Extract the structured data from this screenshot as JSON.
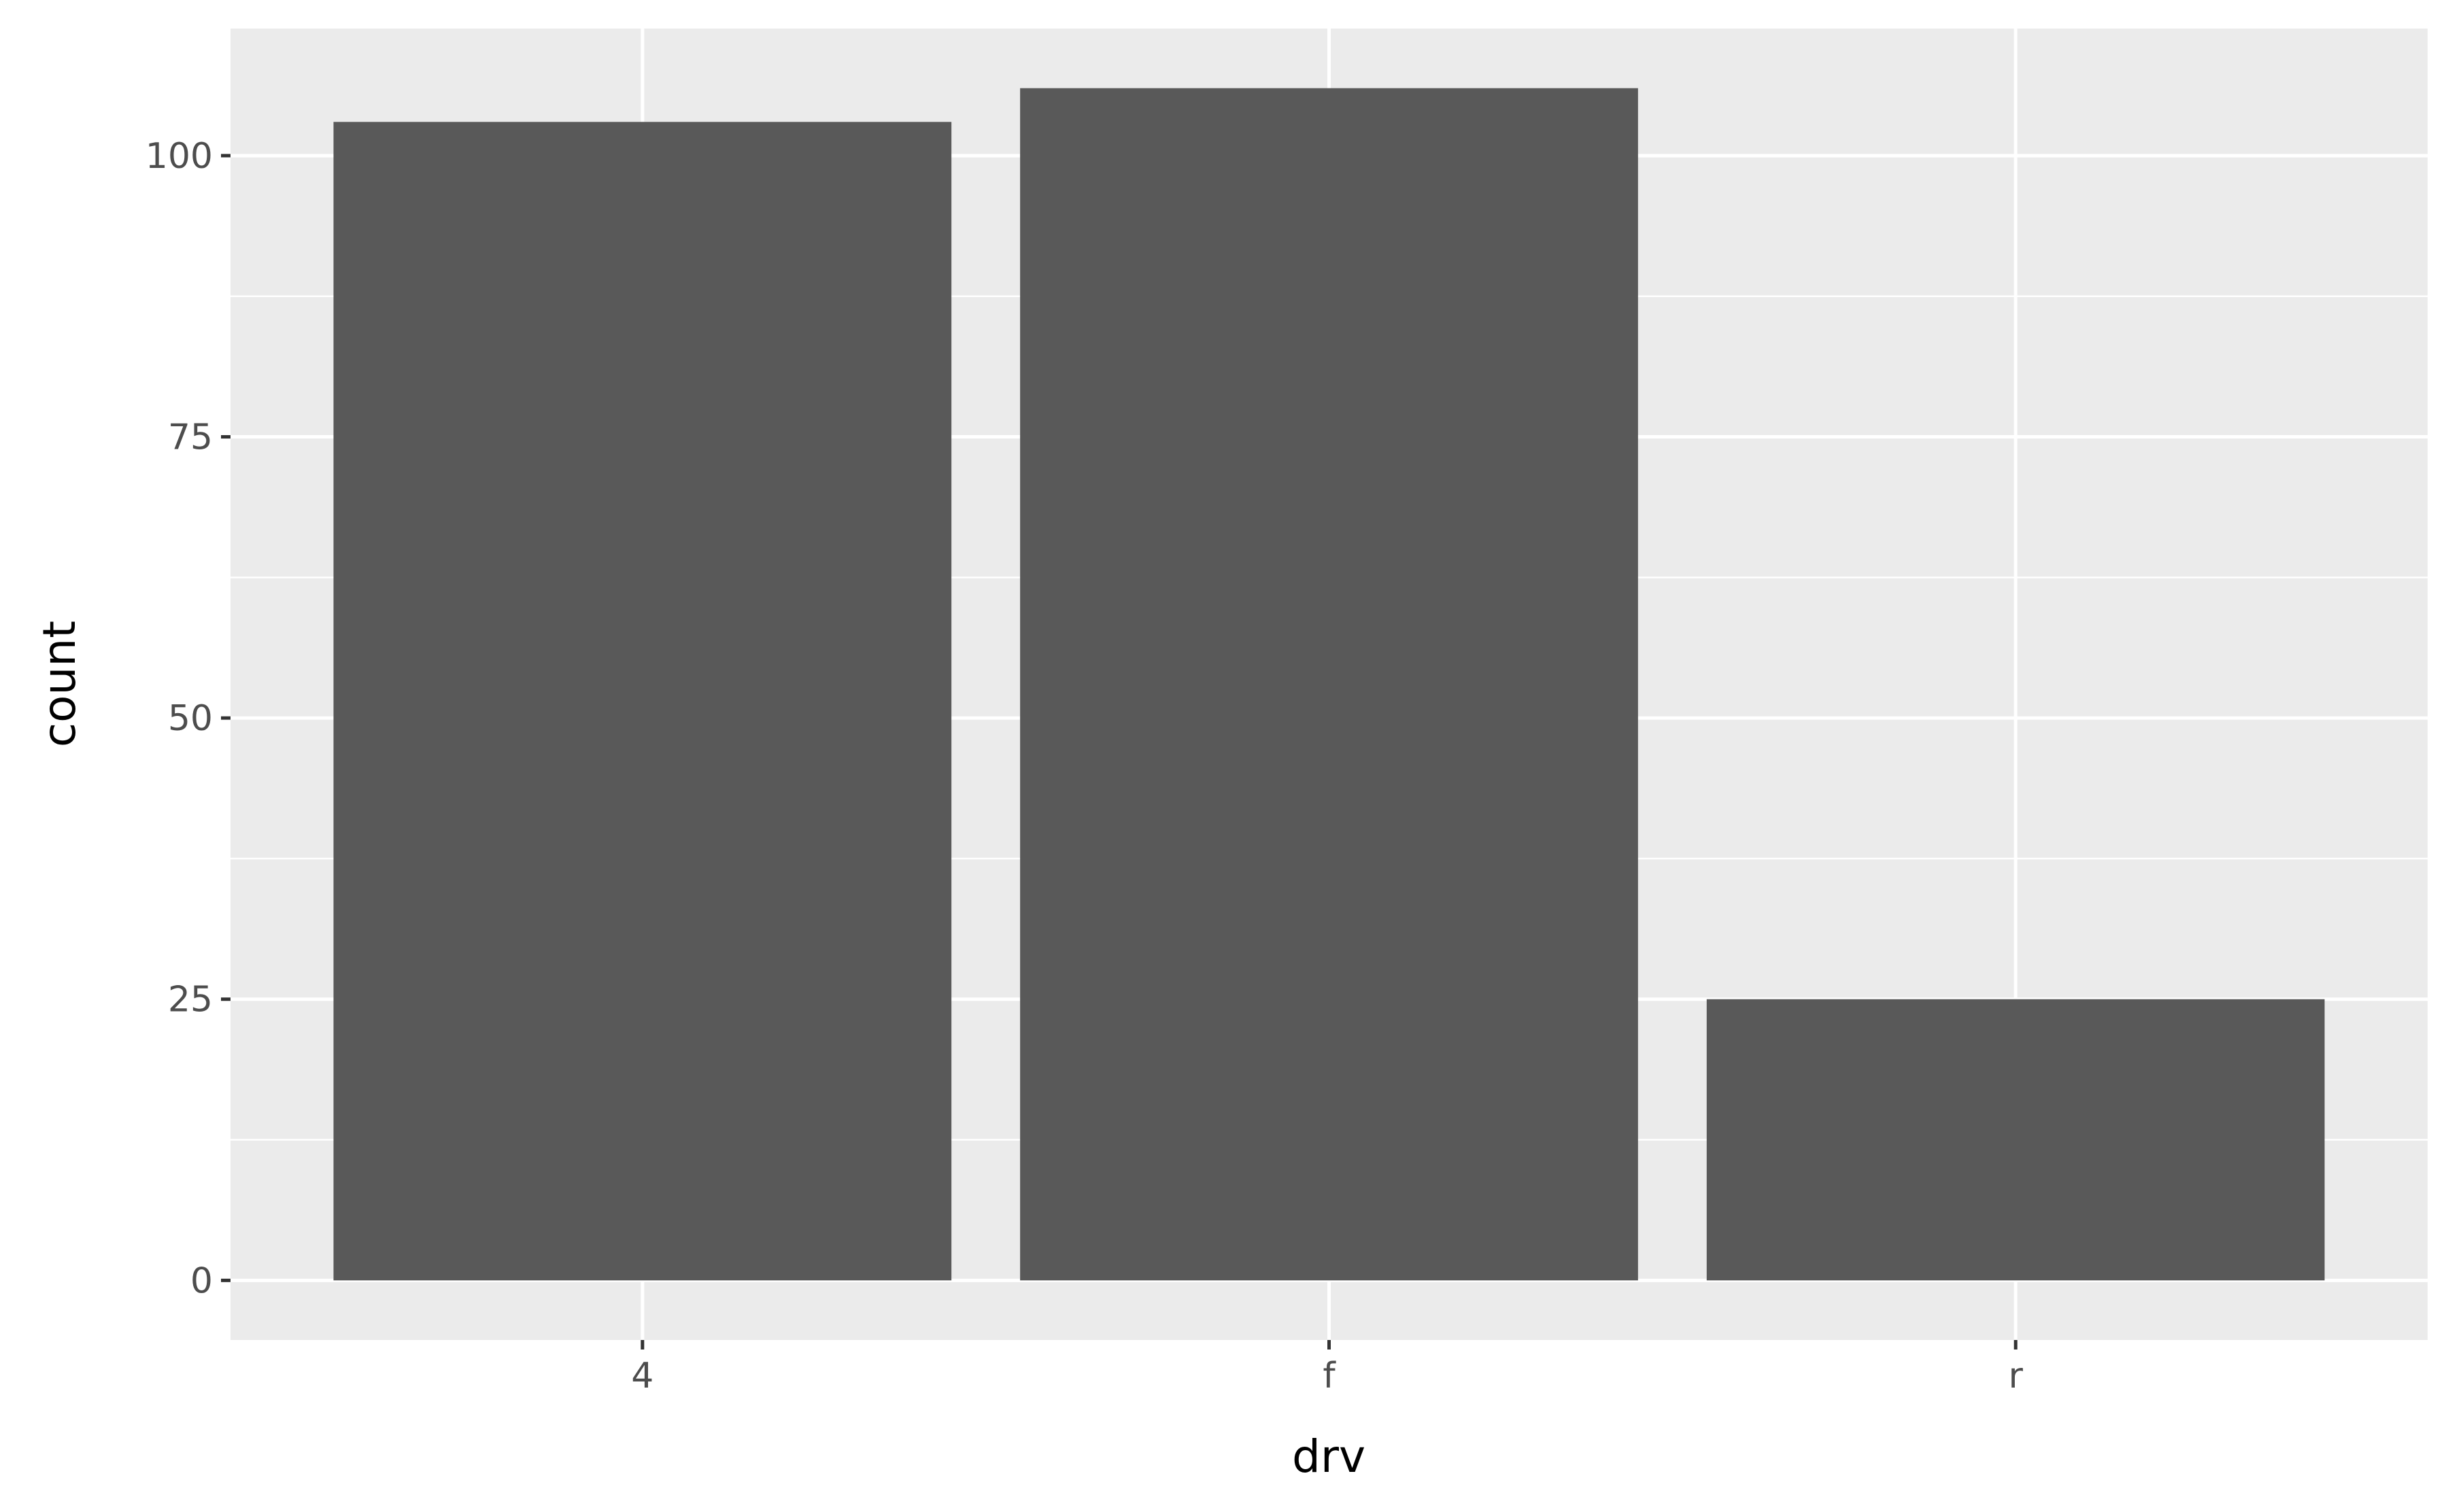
{
  "chart_data": {
    "type": "bar",
    "title": "",
    "xlabel": "drv",
    "ylabel": "count",
    "categories": [
      "4",
      "f",
      "r"
    ],
    "values": [
      103,
      106,
      25
    ],
    "ylim": [
      -5.3,
      111.3
    ],
    "yticks": [
      0,
      25,
      50,
      75,
      100
    ],
    "ytick_labels": [
      "0",
      "25",
      "50",
      "75",
      "100"
    ],
    "grid": true,
    "legend": "none",
    "colors": {
      "panel_background": "#ebebeb",
      "grid": "#ffffff",
      "bar_fill": "#595959",
      "tick_label": "#4d4d4d",
      "tick_mark": "#333333"
    }
  }
}
